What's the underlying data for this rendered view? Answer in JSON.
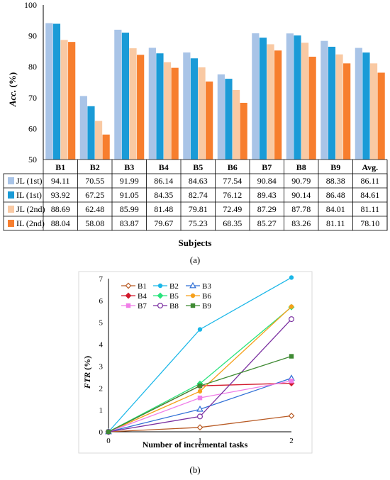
{
  "chart_data": [
    {
      "type": "bar",
      "ylabel_main": "Acc.",
      "ylabel_unit": " (%)",
      "xlabel": "Subjects",
      "ylim": [
        50,
        100
      ],
      "yticks": [
        50,
        60,
        70,
        80,
        90,
        100
      ],
      "categories": [
        "B1",
        "B2",
        "B3",
        "B4",
        "B5",
        "B6",
        "B7",
        "B8",
        "B9",
        "Avg."
      ],
      "series": [
        {
          "name": "JL (1st)",
          "color": "#a9c4e7",
          "values": [
            94.11,
            70.55,
            91.99,
            86.14,
            84.63,
            77.54,
            90.84,
            90.79,
            88.38,
            86.11
          ]
        },
        {
          "name": "IL (1st)",
          "color": "#1a9bd7",
          "values": [
            93.92,
            67.25,
            91.05,
            84.35,
            82.74,
            76.12,
            89.43,
            90.14,
            86.48,
            84.61
          ]
        },
        {
          "name": "JL (2nd)",
          "color": "#f9c9a3",
          "values": [
            88.69,
            62.48,
            85.99,
            81.48,
            79.81,
            72.49,
            87.29,
            87.78,
            84.01,
            81.11
          ]
        },
        {
          "name": "IL (2nd)",
          "color": "#f77e2e",
          "values": [
            88.04,
            58.08,
            83.87,
            79.67,
            75.23,
            68.35,
            85.27,
            83.26,
            81.11,
            78.1
          ]
        }
      ],
      "table_values": [
        [
          "94.11",
          "70.55",
          "91.99",
          "86.14",
          "84.63",
          "77.54",
          "90.84",
          "90.79",
          "88.38",
          "86.11"
        ],
        [
          "93.92",
          "67.25",
          "91.05",
          "84.35",
          "82.74",
          "76.12",
          "89.43",
          "90.14",
          "86.48",
          "84.61"
        ],
        [
          "88.69",
          "62.48",
          "85.99",
          "81.48",
          "79.81",
          "72.49",
          "87.29",
          "87.78",
          "84.01",
          "81.11"
        ],
        [
          "88.04",
          "58.08",
          "83.87",
          "79.67",
          "75.23",
          "68.35",
          "85.27",
          "83.26",
          "81.11",
          "78.10"
        ]
      ],
      "grid": false,
      "caption": "(a)"
    },
    {
      "type": "line",
      "ylabel_main": "FTR",
      "ylabel_unit": " (%)",
      "xlabel": "Number of incremental tasks",
      "x": [
        0,
        1,
        2
      ],
      "xlim": [
        0,
        2
      ],
      "ylim": [
        0,
        7
      ],
      "yticks": [
        0,
        1,
        2,
        3,
        4,
        5,
        6,
        7
      ],
      "legend_position": "top-left",
      "series": [
        {
          "name": "B1",
          "color": "#b85a24",
          "marker": "diamond-open",
          "values": [
            0,
            0.2,
            0.73
          ]
        },
        {
          "name": "B2",
          "color": "#1bb7e8",
          "marker": "circle-filled",
          "values": [
            0,
            4.68,
            7.05
          ]
        },
        {
          "name": "B3",
          "color": "#2f6fd6",
          "marker": "triangle-open",
          "values": [
            0,
            1.03,
            2.45
          ]
        },
        {
          "name": "B4",
          "color": "#d21a2c",
          "marker": "diamond-filled",
          "values": [
            0,
            2.1,
            2.22
          ]
        },
        {
          "name": "B5",
          "color": "#29e37c",
          "marker": "diamond-filled",
          "values": [
            0,
            2.2,
            5.7
          ]
        },
        {
          "name": "B6",
          "color": "#f6a01a",
          "marker": "circle-filled",
          "values": [
            0,
            1.85,
            5.72
          ]
        },
        {
          "name": "B7",
          "color": "#f07ee8",
          "marker": "square-filled",
          "values": [
            0,
            1.55,
            2.32
          ]
        },
        {
          "name": "B8",
          "color": "#7a2fa0",
          "marker": "circle-open",
          "values": [
            0,
            0.7,
            5.15
          ]
        },
        {
          "name": "B9",
          "color": "#3f8a33",
          "marker": "square-filled",
          "values": [
            0,
            2.1,
            3.45
          ]
        }
      ],
      "grid": false,
      "caption": "(b)"
    }
  ]
}
